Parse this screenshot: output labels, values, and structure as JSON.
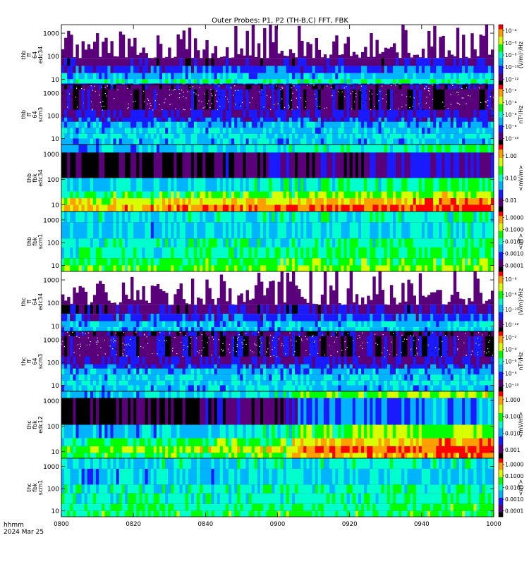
{
  "chart_data": {
    "type": "heatmap",
    "title": "Outer Probes: P1, P2 (TH-B,C) FFT, FBK",
    "x_ticks": [
      "0800",
      "0820",
      "0840",
      "0900",
      "0920",
      "0940",
      "1000"
    ],
    "x_label_line1": "hhmm",
    "x_label_line2": "2024 Mar 25",
    "colormap": [
      "#000000",
      "#5a007a",
      "#1a1aff",
      "#00b4ff",
      "#00ffcc",
      "#00ff00",
      "#d8ff00",
      "#ffa000",
      "#ff0000"
    ],
    "panels": [
      {
        "ylabel": [
          "thb",
          "ff",
          "64",
          "edc34"
        ],
        "yticks": [
          "10",
          "100",
          "1000"
        ],
        "cbar_label": "(V/m)²/Hz",
        "cbar_ticks": [
          "10⁻⁴",
          "10⁻⁶",
          "10⁻⁸",
          "10⁻¹⁰",
          "10⁻¹²"
        ]
      },
      {
        "ylabel": [
          "thb",
          "ff",
          "64",
          "scm3"
        ],
        "yticks": [
          "10",
          "100",
          "1000"
        ],
        "cbar_label": "nT²/Hz",
        "cbar_ticks": [
          "10⁻²",
          "10⁻⁴",
          "10⁻⁶",
          "10⁻⁸",
          "10⁻¹⁰"
        ]
      },
      {
        "ylabel": [
          "thb",
          "fbk",
          "edc34"
        ],
        "yticks": [
          "10",
          "100",
          "1000"
        ],
        "cbar_label": "<mV/m>",
        "cbar_ticks": [
          "1.00",
          "0.10",
          "0.01"
        ]
      },
      {
        "ylabel": [
          "thb",
          "fbk",
          "scm1"
        ],
        "yticks": [
          "10",
          "100",
          "1000"
        ],
        "cbar_label": "<nT>",
        "cbar_ticks": [
          "1.0000",
          "0.1000",
          "0.0100",
          "0.0010",
          "0.0001"
        ]
      },
      {
        "ylabel": [
          "thc",
          "ff",
          "64",
          "edc34"
        ],
        "yticks": [
          "10",
          "100",
          "1000"
        ],
        "cbar_label": "(V/m)²/Hz",
        "cbar_ticks": [
          "10⁻⁶",
          "10⁻⁸",
          "10⁻¹⁰",
          "10⁻¹²"
        ]
      },
      {
        "ylabel": [
          "thc",
          "ff",
          "64",
          "scm3"
        ],
        "yticks": [
          "10",
          "100",
          "1000"
        ],
        "cbar_label": "nT²/Hz",
        "cbar_ticks": [
          "10⁻²",
          "10⁻⁴",
          "10⁻⁶",
          "10⁻⁸",
          "10⁻¹⁰"
        ]
      },
      {
        "ylabel": [
          "thc",
          "fbk",
          "edc12"
        ],
        "yticks": [
          "10",
          "100",
          "1000"
        ],
        "cbar_label": "<mV/m>",
        "cbar_ticks": [
          "1.000",
          "0.100",
          "0.010",
          "0.001"
        ]
      },
      {
        "ylabel": [
          "thc",
          "fbk",
          "scm1"
        ],
        "yticks": [
          "10",
          "100",
          "1000"
        ],
        "cbar_label": "<nT>",
        "cbar_ticks": [
          "1.0000",
          "0.1000",
          "0.0100",
          "0.0010",
          "0.0001"
        ]
      }
    ]
  }
}
